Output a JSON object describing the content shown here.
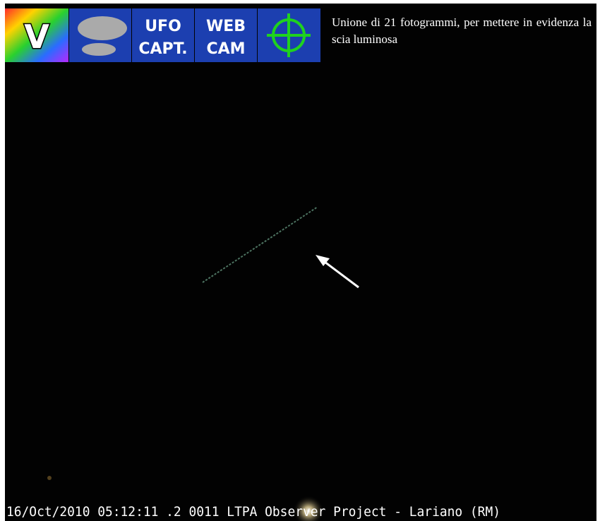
{
  "header": {
    "icons": [
      {
        "label": "V"
      },
      {
        "label": null
      },
      {
        "lines": [
          "UFO",
          "CAPT."
        ]
      },
      {
        "lines": [
          "WEB",
          "CAM"
        ]
      },
      {
        "label": null
      }
    ],
    "caption": "Unione di 21 fotogrammi, per mettere in evidenza la scia luminosa"
  },
  "footer": {
    "stamp": "16/Oct/2010 05:12:11 .2 0011 LTPA Observer Project - Lariano (RM)"
  }
}
